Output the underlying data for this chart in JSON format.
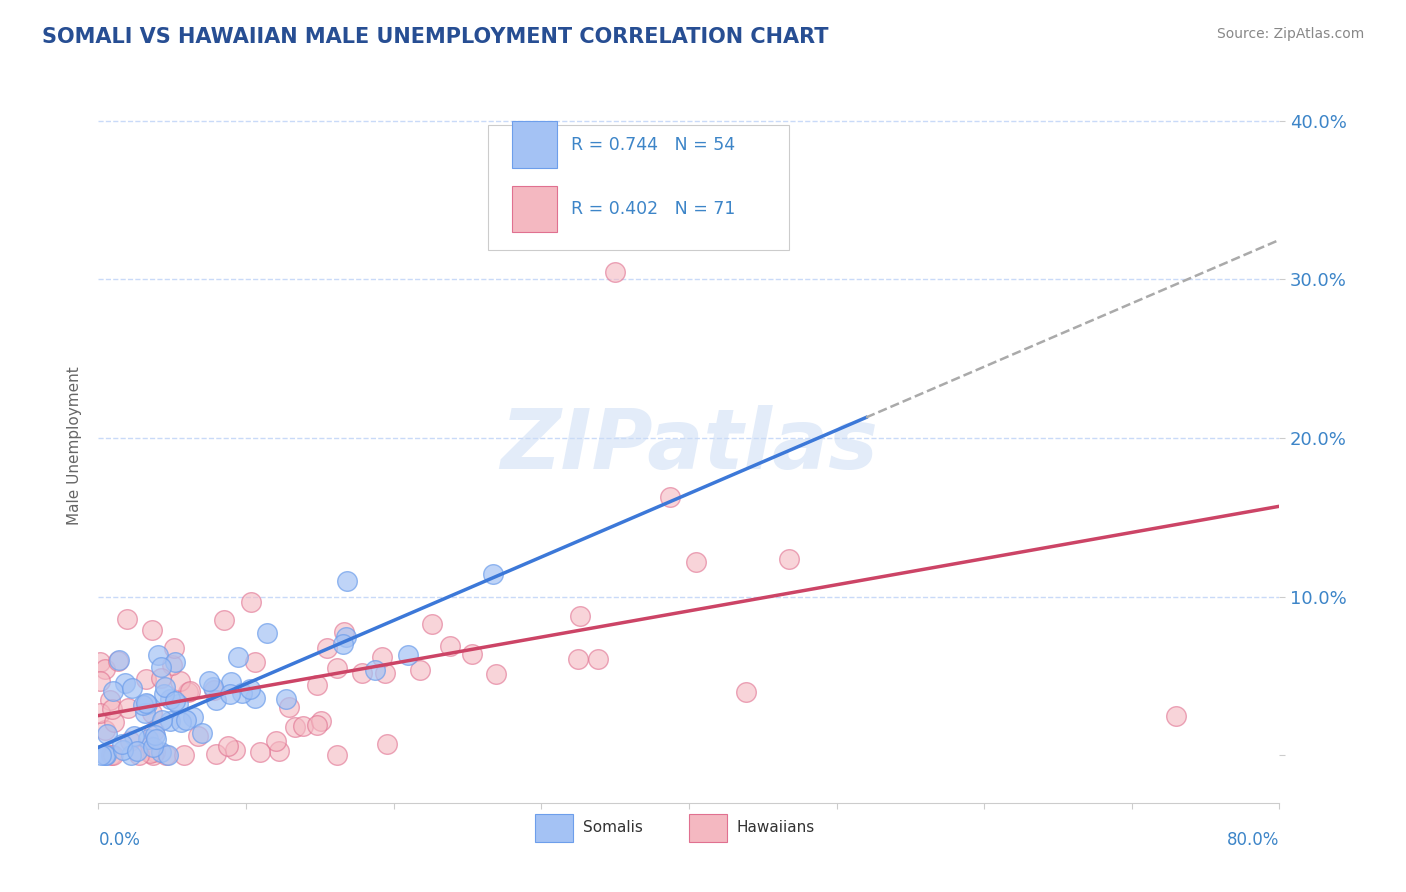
{
  "title": "SOMALI VS HAWAIIAN MALE UNEMPLOYMENT CORRELATION CHART",
  "source": "Source: ZipAtlas.com",
  "ylabel": "Male Unemployment",
  "xmin": 0.0,
  "xmax": 0.8,
  "ymin": -0.03,
  "ymax": 0.42,
  "somali_R": 0.744,
  "somali_N": 54,
  "hawaiian_R": 0.402,
  "hawaiian_N": 71,
  "somali_color": "#a4c2f4",
  "hawaiian_color": "#f4b8c1",
  "somali_edge": "#6d9eeb",
  "hawaiian_edge": "#e07090",
  "trend_somali_color": "#3c78d8",
  "trend_hawaiian_color": "#cc4466",
  "trend_dashed_color": "#aaaaaa",
  "background_color": "#ffffff",
  "grid_color": "#c9daf8",
  "title_color": "#274e93",
  "axis_label_color": "#3d85c8",
  "ylabel_color": "#666666",
  "watermark": "ZIPatlas",
  "somali_seed": 7,
  "hawaiian_seed": 13,
  "somali_slope": 0.4,
  "somali_intercept": 0.005,
  "somali_x_max_line": 0.52,
  "hawaiian_slope": 0.165,
  "hawaiian_intercept": 0.025,
  "legend_R_color": "#3d85c8",
  "legend_N_color": "#3d85c8"
}
